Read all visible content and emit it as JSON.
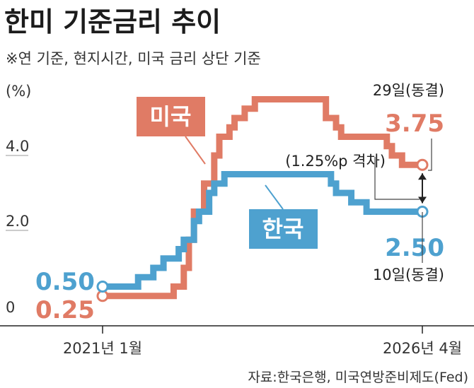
{
  "header": {
    "title": "한미 기준금리 추이",
    "subtitle": "※연 기준, 현지시간, 미국 금리 상단 기준"
  },
  "source": "자료:한국은행, 미국연방준비제도(Fed)",
  "colors": {
    "us": "#e07b65",
    "kr": "#4ea1cf",
    "axis": "#222222",
    "grid": "#999999"
  },
  "chart_data": {
    "type": "line",
    "step": true,
    "unit_label": "(%)",
    "yticks": [
      "0",
      "2.0",
      "4.0"
    ],
    "ylim": [
      0,
      6
    ],
    "xticks": [
      {
        "x": "2021-01",
        "label": "2021년 1월"
      },
      {
        "x": "2026-04",
        "label": "2026년 4월"
      }
    ],
    "series": [
      {
        "name": "미국",
        "color": "#e07b65",
        "points": [
          [
            "2021-01",
            0.25
          ],
          [
            "2022-03",
            0.5
          ],
          [
            "2022-05",
            1.0
          ],
          [
            "2022-06",
            1.75
          ],
          [
            "2022-07",
            2.5
          ],
          [
            "2022-09",
            3.25
          ],
          [
            "2022-11",
            4.0
          ],
          [
            "2022-12",
            4.5
          ],
          [
            "2023-02",
            4.75
          ],
          [
            "2023-03",
            5.0
          ],
          [
            "2023-05",
            5.25
          ],
          [
            "2023-07",
            5.5
          ],
          [
            "2024-09",
            5.0
          ],
          [
            "2024-11",
            4.75
          ],
          [
            "2024-12",
            4.5
          ],
          [
            "2025-09",
            4.25
          ],
          [
            "2025-10",
            4.0
          ],
          [
            "2025-12",
            3.75
          ],
          [
            "2026-04",
            3.75
          ]
        ],
        "start_label": "0.25",
        "end_label": "3.75",
        "end_note": "29일(동결)"
      },
      {
        "name": "한국",
        "color": "#4ea1cf",
        "points": [
          [
            "2021-01",
            0.5
          ],
          [
            "2021-08",
            0.75
          ],
          [
            "2021-11",
            1.0
          ],
          [
            "2022-01",
            1.25
          ],
          [
            "2022-04",
            1.5
          ],
          [
            "2022-05",
            1.75
          ],
          [
            "2022-07",
            2.25
          ],
          [
            "2022-08",
            2.5
          ],
          [
            "2022-10",
            3.0
          ],
          [
            "2022-11",
            3.25
          ],
          [
            "2023-01",
            3.5
          ],
          [
            "2024-10",
            3.25
          ],
          [
            "2024-11",
            3.0
          ],
          [
            "2025-02",
            2.75
          ],
          [
            "2025-05",
            2.5
          ],
          [
            "2026-04",
            2.5
          ]
        ],
        "start_label": "0.50",
        "end_label": "2.50",
        "end_note": "10일(동결)"
      }
    ],
    "annotations": [
      {
        "text": "(1.25%p 격차)",
        "between": [
          "미국",
          "한국"
        ],
        "at": "2026-04"
      }
    ]
  }
}
